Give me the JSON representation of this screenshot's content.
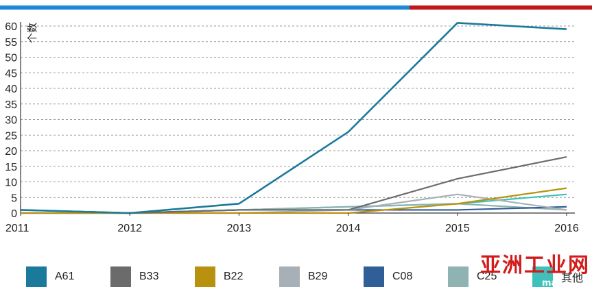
{
  "colors": {
    "topbar_left": "#1e88d9",
    "topbar_right": "#c0171b",
    "grid": "#9a9a9a",
    "axis": "#333333"
  },
  "chart_data": {
    "type": "line",
    "title": "",
    "xlabel": "",
    "ylabel": "个数",
    "x": [
      2011,
      2012,
      2013,
      2014,
      2015,
      2016
    ],
    "ylim": [
      0,
      60
    ],
    "yticks": [
      0,
      5,
      10,
      15,
      20,
      25,
      30,
      35,
      40,
      45,
      50,
      55,
      60
    ],
    "grid": "horizontal dashed",
    "legend_position": "bottom",
    "series": [
      {
        "name": "A61",
        "color": "#1a7a9a",
        "values": [
          1,
          0,
          3,
          26,
          61,
          59
        ]
      },
      {
        "name": "B33",
        "color": "#6b6b6b",
        "values": [
          1,
          0,
          1,
          1,
          11,
          18
        ]
      },
      {
        "name": "B22",
        "color": "#b8920e",
        "values": [
          0,
          0,
          0,
          0,
          3,
          8
        ]
      },
      {
        "name": "B29",
        "color": "#a7b0b6",
        "values": [
          0,
          0,
          0,
          1,
          6,
          1
        ]
      },
      {
        "name": "C08",
        "color": "#2f5f96",
        "values": [
          1,
          0,
          1,
          1,
          1,
          2
        ]
      },
      {
        "name": "C25",
        "color": "#8fb3b3",
        "values": [
          0,
          0,
          1,
          2,
          3,
          1
        ]
      },
      {
        "name": "其他",
        "color": "#3ec1bb",
        "values": [
          0,
          0,
          1,
          2,
          3,
          6
        ]
      }
    ]
  },
  "watermark": {
    "text": "亚洲工业网",
    "sub": "mac"
  }
}
